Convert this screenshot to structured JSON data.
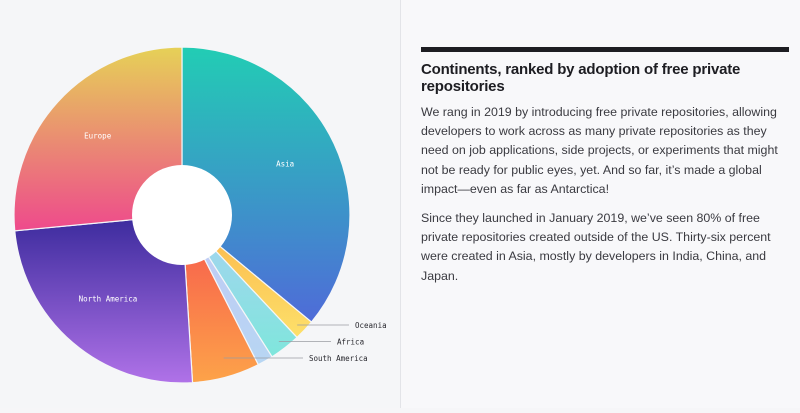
{
  "article": {
    "title": "Continents, ranked by adoption of free private repositories",
    "paragraphs": [
      "We rang in 2019 by introducing free private repositories, allowing developers to work across as many private repositories as they need on job applications, side projects, or experiments that might not be ready for public eyes, yet. And so far, it’s made a global impact—even as far as Antarctica!",
      "Since they launched in January 2019, we’ve seen 80% of free private repositories created outside of the US. Thirty-six percent were created in Asia, mostly by developers in India, China, and Japan."
    ]
  },
  "chart_data": {
    "type": "pie",
    "variant": "donut",
    "unit": "%",
    "slices": [
      {
        "name": "Asia",
        "value": 36,
        "label_position": "inside",
        "colors": [
          "#22cdb4",
          "#4f6bd8"
        ]
      },
      {
        "name": "Oceania",
        "value": 2,
        "label_position": "outside",
        "colors": [
          "#fbb449",
          "#fde06a"
        ]
      },
      {
        "name": "Africa",
        "value": 3,
        "label_position": "outside",
        "colors": [
          "#a9d2f2",
          "#7fe6dc"
        ]
      },
      {
        "name": "",
        "value": 1.5,
        "label_position": "none",
        "colors": [
          "#c2c9f5",
          "#b7d6f3"
        ]
      },
      {
        "name": "South America",
        "value": 6.5,
        "label_position": "outside",
        "colors": [
          "#f6554d",
          "#fda349"
        ]
      },
      {
        "name": "North America",
        "value": 24.5,
        "label_position": "inside",
        "colors": [
          "#3a2a9c",
          "#b072e8"
        ]
      },
      {
        "name": "Europe",
        "value": 26.5,
        "label_position": "inside",
        "colors": [
          "#e6d157",
          "#ee4a8c"
        ]
      }
    ],
    "start": "top",
    "direction": "clockwise",
    "legend": "none"
  }
}
